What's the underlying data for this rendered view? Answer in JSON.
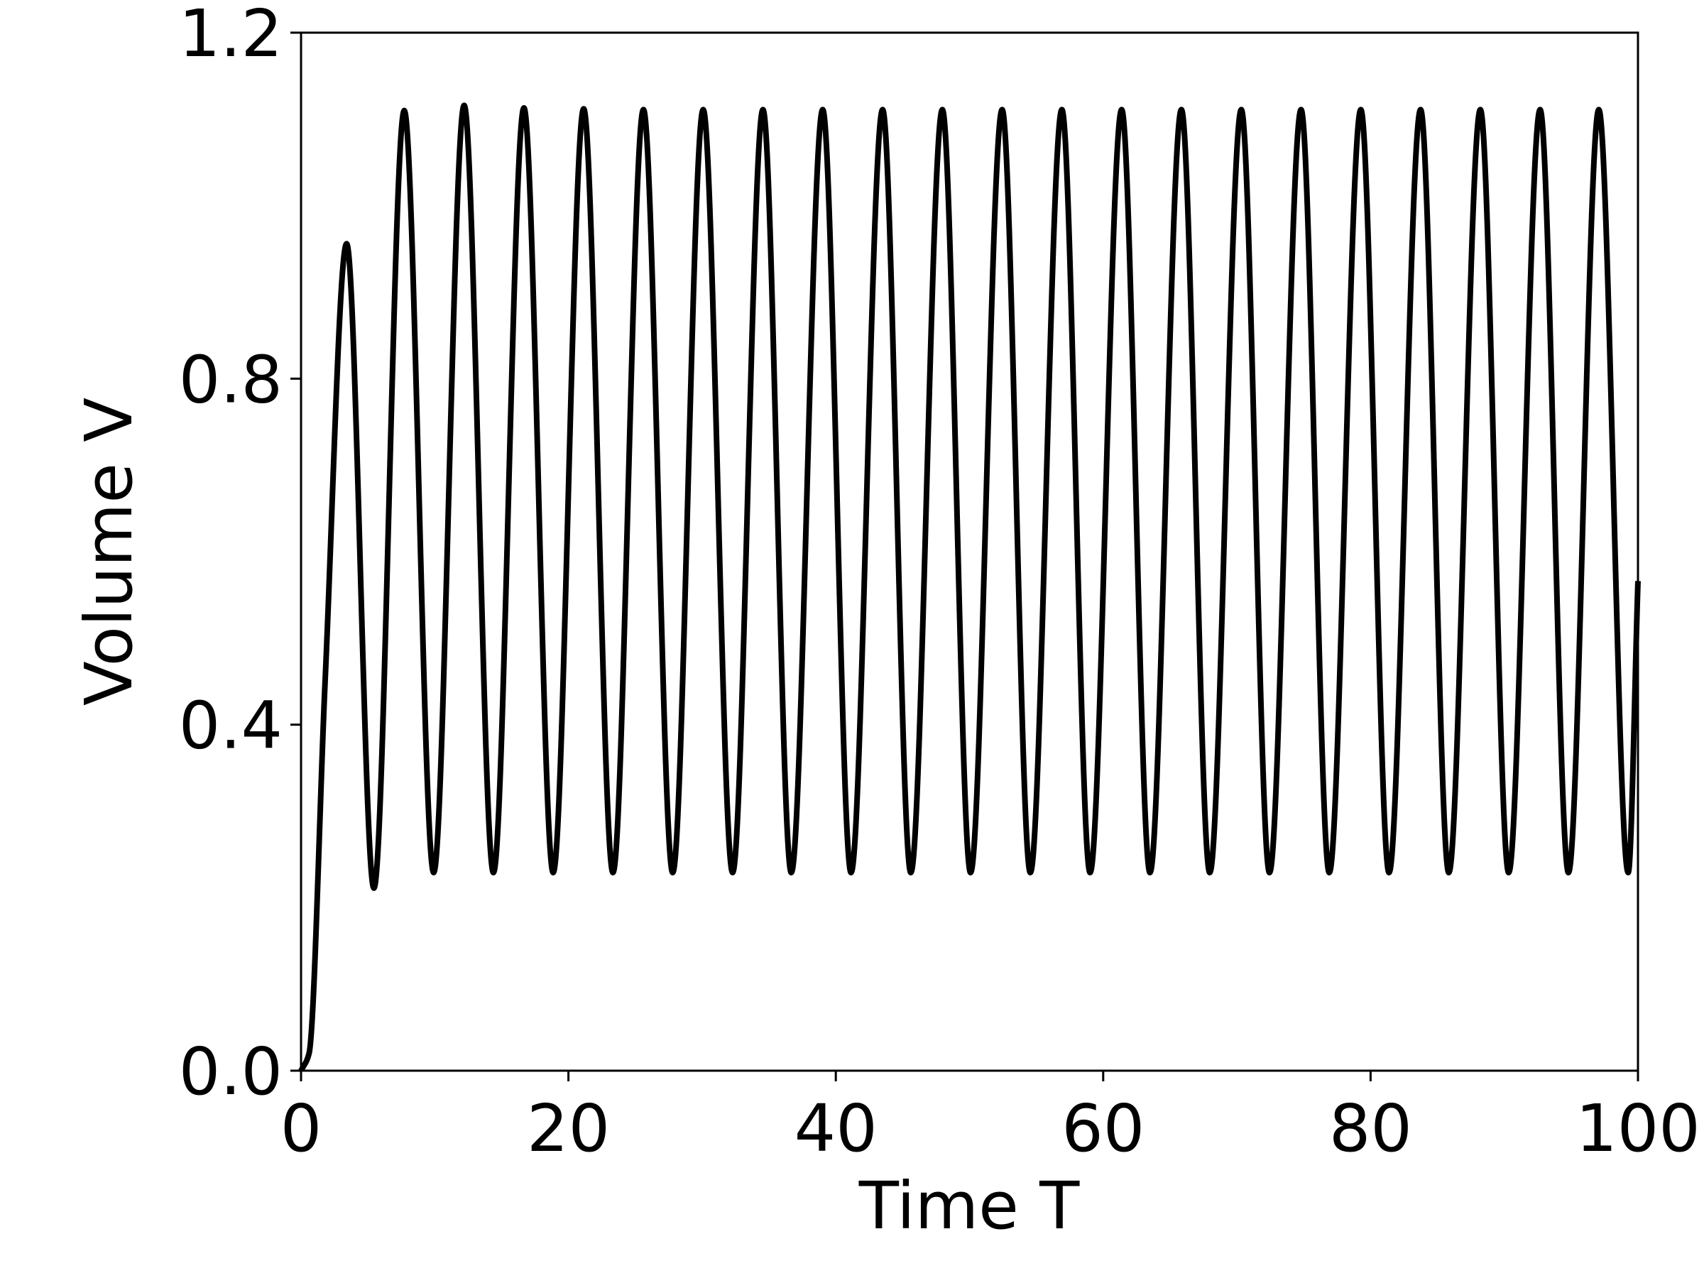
{
  "chart_data": {
    "type": "line",
    "xlabel": "Time T",
    "ylabel": "Volume V",
    "x": [
      0,
      0.6,
      1.8,
      3.41,
      5.45,
      7.72,
      9.92,
      12.2,
      14.39,
      16.67,
      18.86,
      21.14,
      23.33,
      25.61,
      27.8,
      30.08,
      32.28,
      34.55,
      36.67,
      39.02,
      41.14,
      43.5,
      45.61,
      47.97,
      50.08,
      52.44,
      54.55,
      56.91,
      59.02,
      61.38,
      63.5,
      65.85,
      67.97,
      70.33,
      72.44,
      74.8,
      76.91,
      79.27,
      81.38,
      83.74,
      85.85,
      88.21,
      90.33,
      92.68,
      94.8,
      97.07,
      99.27,
      100
    ],
    "series": [
      {
        "name": "V",
        "color": "#000000",
        "values": [
          0,
          0.02,
          0.45,
          0.956,
          0.211,
          1.11,
          0.229,
          1.116,
          0.229,
          1.113,
          0.229,
          1.112,
          0.229,
          1.111,
          0.229,
          1.111,
          0.229,
          1.111,
          0.229,
          1.111,
          0.229,
          1.111,
          0.229,
          1.111,
          0.229,
          1.111,
          0.229,
          1.111,
          0.229,
          1.111,
          0.229,
          1.111,
          0.229,
          1.111,
          0.229,
          1.111,
          0.229,
          1.111,
          0.229,
          1.111,
          0.229,
          1.111,
          0.229,
          1.111,
          0.229,
          1.111,
          0.229,
          0.566
        ]
      }
    ],
    "xlim": [
      0,
      100
    ],
    "xticks": [
      0,
      20,
      40,
      60,
      80,
      100
    ],
    "ylim": [
      0,
      1.2
    ],
    "yticks": [
      {
        "value": 0,
        "label": "0.0"
      },
      0.4,
      0.8,
      1.2
    ],
    "grid": false
  }
}
